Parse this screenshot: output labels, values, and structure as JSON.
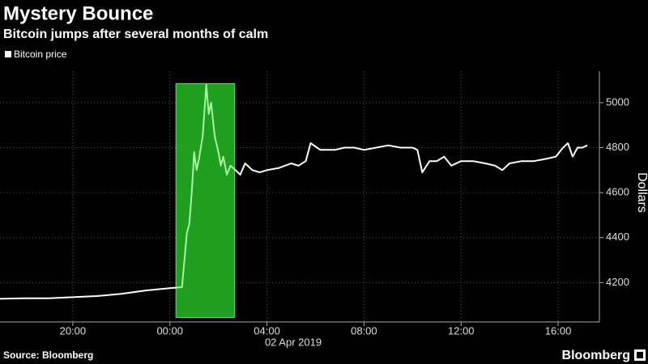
{
  "chart_data": {
    "type": "line",
    "title": "Mystery Bounce",
    "subtitle": "Bitcoin jumps after several months of calm",
    "ylabel": "Dollars",
    "date_label": "02 Apr 2019",
    "source": "Source: Bloomberg",
    "brand": "Bloomberg",
    "x": [
      -7,
      -6,
      -5,
      -4,
      -3,
      -2,
      -1,
      0,
      0.3,
      0.5,
      0.6,
      0.7,
      0.8,
      0.9,
      1.0,
      1.1,
      1.2,
      1.35,
      1.5,
      1.6,
      1.7,
      1.85,
      2.0,
      2.1,
      2.2,
      2.35,
      2.5,
      2.7,
      2.9,
      3.1,
      3.4,
      3.7,
      4.0,
      4.5,
      5.0,
      5.3,
      5.6,
      5.8,
      6.2,
      6.8,
      7.2,
      7.6,
      8.0,
      8.5,
      9.0,
      9.5,
      10.0,
      10.2,
      10.4,
      10.7,
      11.0,
      11.3,
      11.6,
      12.0,
      12.5,
      13.0,
      13.4,
      13.7,
      14.0,
      14.5,
      15.0,
      15.5,
      15.9,
      16.2,
      16.4,
      16.6,
      16.8,
      17.0,
      17.2
    ],
    "series": [
      {
        "name": "Bitcoin price",
        "color": "#ffffff",
        "highlight_color": "#a6f7a0",
        "values": [
          4128,
          4130,
          4130,
          4135,
          4140,
          4150,
          4165,
          4175,
          4178,
          4180,
          4300,
          4420,
          4460,
          4600,
          4780,
          4700,
          4750,
          4850,
          5080,
          4950,
          5000,
          4850,
          4780,
          4720,
          4760,
          4680,
          4720,
          4700,
          4680,
          4730,
          4700,
          4690,
          4700,
          4710,
          4730,
          4720,
          4740,
          4820,
          4790,
          4790,
          4800,
          4800,
          4790,
          4800,
          4810,
          4800,
          4800,
          4790,
          4690,
          4740,
          4740,
          4760,
          4720,
          4740,
          4740,
          4730,
          4720,
          4700,
          4730,
          4740,
          4740,
          4750,
          4760,
          4800,
          4820,
          4760,
          4800,
          4800,
          4810
        ]
      }
    ],
    "highlight": {
      "x": [
        0.25,
        2.67
      ],
      "y": [
        4045,
        5085
      ],
      "color": "#1f9e1f"
    },
    "xlim": [
      -7,
      17.7
    ],
    "ylim": [
      4025,
      5140
    ],
    "xticks": [
      {
        "value": -4,
        "label": "20:00"
      },
      {
        "value": 0,
        "label": "00:00"
      },
      {
        "value": 4,
        "label": "04:00"
      },
      {
        "value": 8,
        "label": "08:00"
      },
      {
        "value": 12,
        "label": "12:00"
      },
      {
        "value": 16,
        "label": "16:00"
      }
    ],
    "yticks": [
      4200,
      4400,
      4600,
      4800,
      5000
    ],
    "grid": true
  }
}
